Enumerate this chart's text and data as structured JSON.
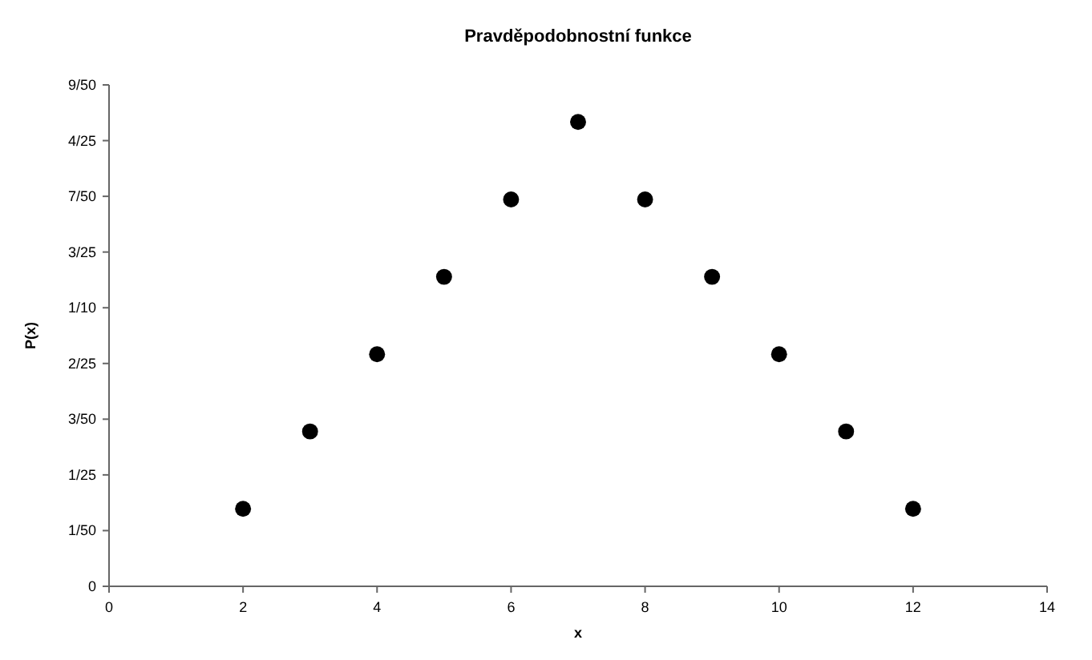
{
  "chart_data": {
    "type": "scatter",
    "title": "Pravděpodobnostní funkce",
    "xlabel": "x",
    "ylabel": "P(x)",
    "x": [
      2,
      3,
      4,
      5,
      6,
      7,
      8,
      9,
      10,
      11,
      12
    ],
    "values": [
      0.0278,
      0.0556,
      0.0833,
      0.1111,
      0.1389,
      0.1667,
      0.1389,
      0.1111,
      0.0833,
      0.0556,
      0.0278
    ],
    "color": "#000000",
    "marker": "circle",
    "xlim": [
      0,
      14
    ],
    "xticks": [
      0,
      2,
      4,
      6,
      8,
      10,
      12,
      14
    ],
    "ylim": [
      0,
      0.18
    ],
    "yticks": [
      0,
      {
        "value": 0.02,
        "label": "1/50"
      },
      {
        "value": 0.04,
        "label": "1/25"
      },
      {
        "value": 0.06,
        "label": "3/50"
      },
      {
        "value": 0.08,
        "label": "2/25"
      },
      {
        "value": 0.1,
        "label": "1/10"
      },
      {
        "value": 0.12,
        "label": "3/25"
      },
      {
        "value": 0.14,
        "label": "7/50"
      },
      {
        "value": 0.16,
        "label": "4/25"
      },
      {
        "value": 0.18,
        "label": "9/50"
      }
    ],
    "grid": false
  }
}
